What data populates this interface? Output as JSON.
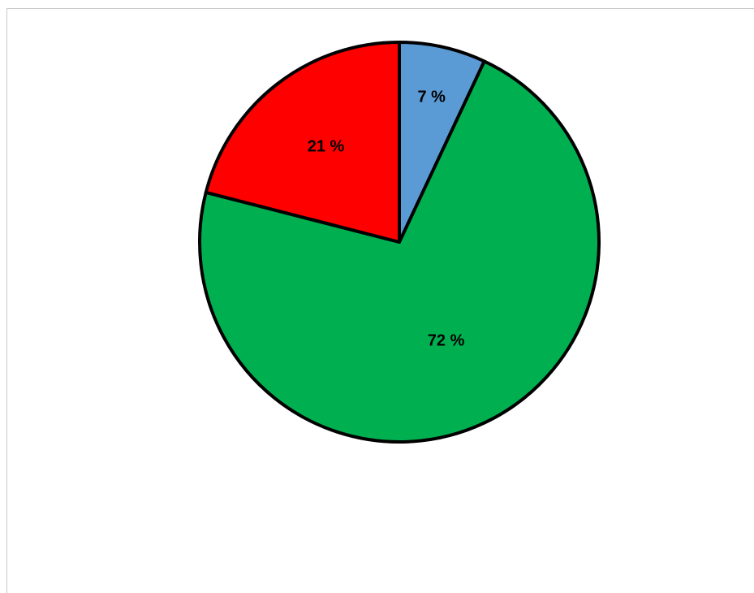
{
  "chart_data": {
    "type": "pie",
    "title": "",
    "slices": [
      {
        "label": "7 %",
        "value": 7,
        "color": "#5b9bd5"
      },
      {
        "label": "72 %",
        "value": 72,
        "color": "#00b050"
      },
      {
        "label": "21 %",
        "value": 21,
        "color": "#ff0000"
      }
    ],
    "start_angle_deg": 0,
    "direction": "clockwise",
    "edge_color": "#000000"
  }
}
